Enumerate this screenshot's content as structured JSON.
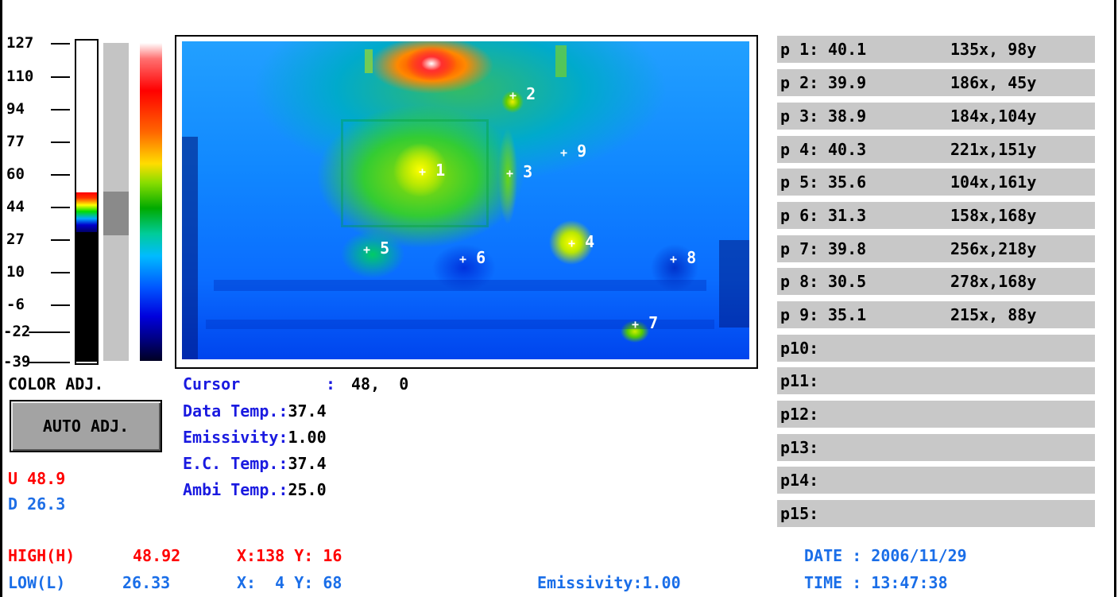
{
  "scale": {
    "ticks": [
      "127",
      "110",
      "94",
      "77",
      "60",
      "44",
      "27",
      "10",
      "-6",
      "-22",
      "-39"
    ]
  },
  "color_adj": {
    "label": "COLOR ADJ.",
    "auto_button": "AUTO ADJ.",
    "upper": "U 48.9",
    "lower": "D 26.3"
  },
  "markers": [
    "1",
    "2",
    "3",
    "4",
    "5",
    "6",
    "7",
    "8",
    "9"
  ],
  "marker_plus": "+",
  "info": {
    "cursor_label": "Cursor",
    "cursor_sep": ":",
    "cursor_value": "48,  0",
    "data_temp_label": "Data Temp.:",
    "data_temp_value": "37.4",
    "emissivity_label": "Emissivity:",
    "emissivity_value": "1.00",
    "ec_temp_label": "E.C. Temp.:",
    "ec_temp_value": "37.4",
    "ambi_temp_label": "Ambi Temp.:",
    "ambi_temp_value": "25.0"
  },
  "points": [
    {
      "label": "p 1:",
      "temp": "40.1",
      "coord": "135x, 98y"
    },
    {
      "label": "p 2:",
      "temp": "39.9",
      "coord": "186x, 45y"
    },
    {
      "label": "p 3:",
      "temp": "38.9",
      "coord": "184x,104y"
    },
    {
      "label": "p 4:",
      "temp": "40.3",
      "coord": "221x,151y"
    },
    {
      "label": "p 5:",
      "temp": "35.6",
      "coord": "104x,161y"
    },
    {
      "label": "p 6:",
      "temp": "31.3",
      "coord": "158x,168y"
    },
    {
      "label": "p 7:",
      "temp": "39.8",
      "coord": "256x,218y"
    },
    {
      "label": "p 8:",
      "temp": "30.5",
      "coord": "278x,168y"
    },
    {
      "label": "p 9:",
      "temp": "35.1",
      "coord": "215x, 88y"
    },
    {
      "label": "p10:",
      "temp": "",
      "coord": ""
    },
    {
      "label": "p11:",
      "temp": "",
      "coord": ""
    },
    {
      "label": "p12:",
      "temp": "",
      "coord": ""
    },
    {
      "label": "p13:",
      "temp": "",
      "coord": ""
    },
    {
      "label": "p14:",
      "temp": "",
      "coord": ""
    },
    {
      "label": "p15:",
      "temp": "",
      "coord": ""
    }
  ],
  "bottom": {
    "high_label": "HIGH(H)",
    "high_value": "48.92",
    "high_xy": "X:138 Y: 16",
    "low_label": "LOW(L)",
    "low_value": "26.33",
    "low_xy": "X:  4 Y: 68",
    "emissivity": "Emissivity:1.00",
    "date": "DATE : 2006/11/29",
    "time": "TIME : 13:47:38"
  },
  "colors": {
    "red": "#ff0000",
    "blue": "#1a6ee8",
    "label_blue": "#1a1ae0",
    "panel_gray": "#c8c8c8"
  }
}
